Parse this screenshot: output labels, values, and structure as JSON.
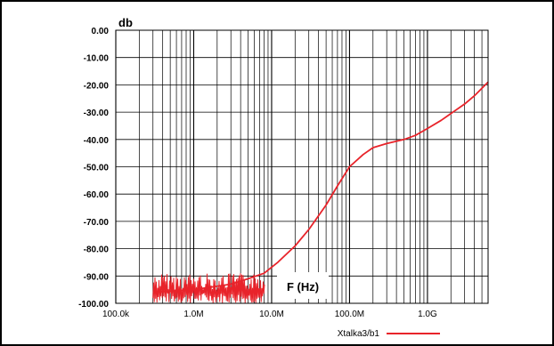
{
  "chart_data": {
    "type": "line",
    "title": "",
    "ylabel": "db",
    "xlabel": "F (Hz)",
    "xscale": "log",
    "xlim": [
      100000,
      6000000000
    ],
    "ylim": [
      -100,
      0
    ],
    "grid": true,
    "legend_position": "bottom-right",
    "x_tick_labels": [
      "100.0k",
      "1.0M",
      "10.0M",
      "100.0M",
      "1.0G"
    ],
    "x_tick_values": [
      100000,
      1000000,
      10000000,
      100000000,
      1000000000
    ],
    "y_tick_labels": [
      "0.00",
      "-10.00",
      "-20.00",
      "-30.00",
      "-40.00",
      "-50.00",
      "-60.00",
      "-70.00",
      "-80.00",
      "-90.00",
      "-100.00"
    ],
    "y_tick_values": [
      0,
      -10,
      -20,
      -30,
      -40,
      -50,
      -60,
      -70,
      -80,
      -90,
      -100
    ],
    "noise_band": {
      "x_start": 300000,
      "x_end": 8000000,
      "y_low": -100,
      "y_high": -89
    },
    "series": [
      {
        "name": "Xtalka3/b1",
        "color": "#e8232a",
        "x": [
          300000,
          1000000,
          3000000,
          5000000,
          8000000,
          12000000,
          20000000,
          30000000,
          50000000,
          70000000,
          100000000,
          150000000,
          200000000,
          300000000,
          500000000,
          700000000,
          1000000000,
          1500000000,
          2000000000,
          3000000000,
          4000000000,
          6000000000
        ],
        "y": [
          -96,
          -95,
          -93,
          -91,
          -89,
          -85,
          -79,
          -73,
          -64,
          -57,
          -50,
          -45.5,
          -43,
          -41.5,
          -40,
          -38.5,
          -36,
          -33,
          -30.5,
          -27,
          -24,
          -19
        ]
      }
    ]
  }
}
